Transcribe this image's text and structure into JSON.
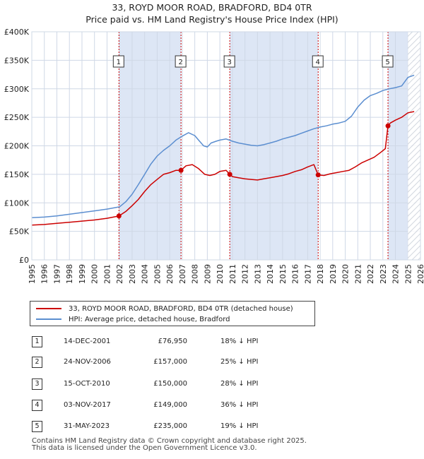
{
  "title_line1": "33, ROYD MOOR ROAD, BRADFORD, BD4 0TR",
  "title_line2": "Price paid vs. HM Land Registry's House Price Index (HPI)",
  "colors": {
    "price_paid": "#cc0000",
    "hpi": "#5b8ed0",
    "shade": "#dde6f5",
    "grid": "#cfd8e6"
  },
  "chart_data": {
    "type": "line",
    "title": "Price paid vs. HM Land Registry's House Price Index (HPI)",
    "xlabel": "",
    "ylabel": "",
    "xlim": [
      1995,
      2026
    ],
    "ylim": [
      0,
      400000
    ],
    "y_ticks": [
      0,
      50000,
      100000,
      150000,
      200000,
      250000,
      300000,
      350000,
      400000
    ],
    "y_tick_labels": [
      "£0",
      "£50K",
      "£100K",
      "£150K",
      "£200K",
      "£250K",
      "£300K",
      "£350K",
      "£400K"
    ],
    "x_ticks": [
      1995,
      1996,
      1997,
      1998,
      1999,
      2000,
      2001,
      2002,
      2003,
      2004,
      2005,
      2006,
      2007,
      2008,
      2009,
      2010,
      2011,
      2012,
      2013,
      2014,
      2015,
      2016,
      2017,
      2018,
      2019,
      2020,
      2021,
      2022,
      2023,
      2024,
      2025,
      2026
    ],
    "grid": true,
    "forecast_hatch_from": 2025.0,
    "series": [
      {
        "name": "33, ROYD MOOR ROAD, BRADFORD, BD4 0TR (detached house)",
        "color": "#cc0000",
        "x": [
          1995,
          1996,
          1997,
          1998,
          1999,
          2000,
          2001,
          2001.95,
          2002.5,
          2003,
          2003.5,
          2004,
          2004.5,
          2005,
          2005.5,
          2006,
          2006.5,
          2006.9,
          2007.3,
          2007.8,
          2008.3,
          2008.8,
          2009.2,
          2009.6,
          2010,
          2010.5,
          2010.79,
          2011,
          2011.5,
          2012,
          2012.5,
          2013,
          2013.5,
          2014,
          2014.5,
          2015,
          2015.5,
          2016,
          2016.5,
          2017,
          2017.5,
          2017.84,
          2018.3,
          2018.8,
          2019.3,
          2019.8,
          2020.3,
          2020.8,
          2021.3,
          2021.8,
          2022.3,
          2022.8,
          2023.2,
          2023.41,
          2023.6,
          2024,
          2024.5,
          2025,
          2025.5
        ],
        "values": [
          61000,
          62000,
          64000,
          66000,
          68000,
          70000,
          73000,
          76950,
          85000,
          95000,
          106000,
          120000,
          132000,
          141000,
          150000,
          153000,
          157000,
          157000,
          165000,
          167000,
          160000,
          150000,
          148000,
          150000,
          155000,
          157000,
          150000,
          146000,
          144000,
          142000,
          141000,
          140000,
          142000,
          144000,
          146000,
          148000,
          151000,
          155000,
          158000,
          163000,
          167000,
          149000,
          148000,
          151000,
          153000,
          155000,
          157000,
          163000,
          170000,
          175000,
          180000,
          188000,
          195000,
          235000,
          240000,
          245000,
          250000,
          258000,
          260000
        ]
      },
      {
        "name": "HPI: Average price, detached house, Bradford",
        "color": "#5b8ed0",
        "x": [
          1995,
          1996,
          1997,
          1998,
          1999,
          2000,
          2001,
          2002,
          2002.5,
          2003,
          2003.5,
          2004,
          2004.5,
          2005,
          2005.5,
          2006,
          2006.5,
          2007,
          2007.5,
          2008,
          2008.3,
          2008.7,
          2009,
          2009.3,
          2009.7,
          2010,
          2010.5,
          2011,
          2011.5,
          2012,
          2012.5,
          2013,
          2013.5,
          2014,
          2014.5,
          2015,
          2015.5,
          2016,
          2016.5,
          2017,
          2017.5,
          2018,
          2018.5,
          2019,
          2019.5,
          2020,
          2020.5,
          2021,
          2021.5,
          2022,
          2022.5,
          2023,
          2023.5,
          2024,
          2024.5,
          2025,
          2025.5
        ],
        "values": [
          74000,
          75000,
          77000,
          80000,
          83000,
          86000,
          89000,
          93000,
          102000,
          115000,
          132000,
          150000,
          168000,
          182000,
          192000,
          200000,
          210000,
          217000,
          223000,
          218000,
          210000,
          200000,
          198000,
          205000,
          208000,
          210000,
          212000,
          208000,
          205000,
          203000,
          201000,
          200000,
          202000,
          205000,
          208000,
          212000,
          215000,
          218000,
          222000,
          226000,
          230000,
          233000,
          235000,
          238000,
          240000,
          243000,
          252000,
          268000,
          280000,
          288000,
          292000,
          297000,
          300000,
          302000,
          305000,
          320000,
          324000
        ]
      }
    ],
    "sales": [
      {
        "marker": "1",
        "x": 2001.95,
        "value": 76950
      },
      {
        "marker": "2",
        "x": 2006.9,
        "value": 157000
      },
      {
        "marker": "3",
        "x": 2010.79,
        "value": 150000
      },
      {
        "marker": "4",
        "x": 2017.84,
        "value": 149000
      },
      {
        "marker": "5",
        "x": 2023.41,
        "value": 235000
      }
    ],
    "shaded_regions": [
      [
        2001.95,
        2006.9
      ],
      [
        2010.79,
        2017.84
      ],
      [
        2023.41,
        2026
      ]
    ]
  },
  "legend": {
    "price_paid_label": "33, ROYD MOOR ROAD, BRADFORD, BD4 0TR (detached house)",
    "hpi_label": "HPI: Average price, detached house, Bradford"
  },
  "sales_table": [
    {
      "num": "1",
      "date": "14-DEC-2001",
      "price": "£76,950",
      "hpi": "18% ↓ HPI"
    },
    {
      "num": "2",
      "date": "24-NOV-2006",
      "price": "£157,000",
      "hpi": "25% ↓ HPI"
    },
    {
      "num": "3",
      "date": "15-OCT-2010",
      "price": "£150,000",
      "hpi": "28% ↓ HPI"
    },
    {
      "num": "4",
      "date": "03-NOV-2017",
      "price": "£149,000",
      "hpi": "36% ↓ HPI"
    },
    {
      "num": "5",
      "date": "31-MAY-2023",
      "price": "£235,000",
      "hpi": "19% ↓ HPI"
    }
  ],
  "footer_line1": "Contains HM Land Registry data © Crown copyright and database right 2025.",
  "footer_line2": "This data is licensed under the Open Government Licence v3.0."
}
